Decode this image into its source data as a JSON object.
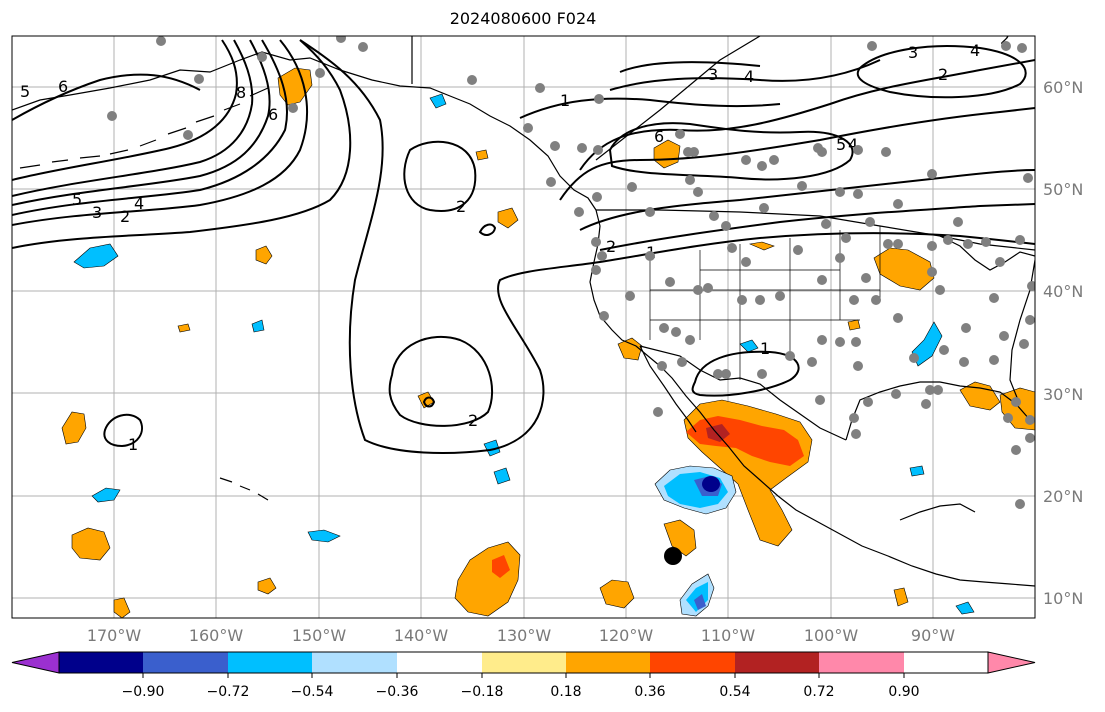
{
  "title": "2024080600 F024",
  "lat_labels": [
    "60°N",
    "50°N",
    "40°N",
    "30°N",
    "20°N",
    "10°N"
  ],
  "lon_labels": [
    "170°W",
    "160°W",
    "150°W",
    "140°W",
    "130°W",
    "120°W",
    "110°W",
    "100°W",
    "90°W"
  ],
  "colorbar": {
    "colors": [
      "#9b30d0",
      "#00008b",
      "#3a5fcd",
      "#00bfff",
      "#b0e0ff",
      "#ffffff",
      "#ffec8b",
      "#ffa500",
      "#ff4500",
      "#b22222",
      "#ff88aa"
    ],
    "tick_labels": [
      "−0.90",
      "−0.72",
      "−0.54",
      "−0.36",
      "−0.18",
      "0.18",
      "0.36",
      "0.54",
      "0.72",
      "0.90"
    ]
  },
  "contour_labels": [
    "5",
    "6",
    "8",
    "6",
    "5",
    "4",
    "3",
    "2",
    "2",
    "2",
    "2",
    "1",
    "1",
    "1",
    "1",
    "2",
    "3",
    "4",
    "6",
    "3",
    "4",
    "2",
    "4",
    "5"
  ],
  "colors": {
    "station_dot": "#808080",
    "land_outline": "#000000",
    "grid": "#b0b0b0",
    "axis_label": "#7a7a7a",
    "storm_marker": "#000000"
  }
}
